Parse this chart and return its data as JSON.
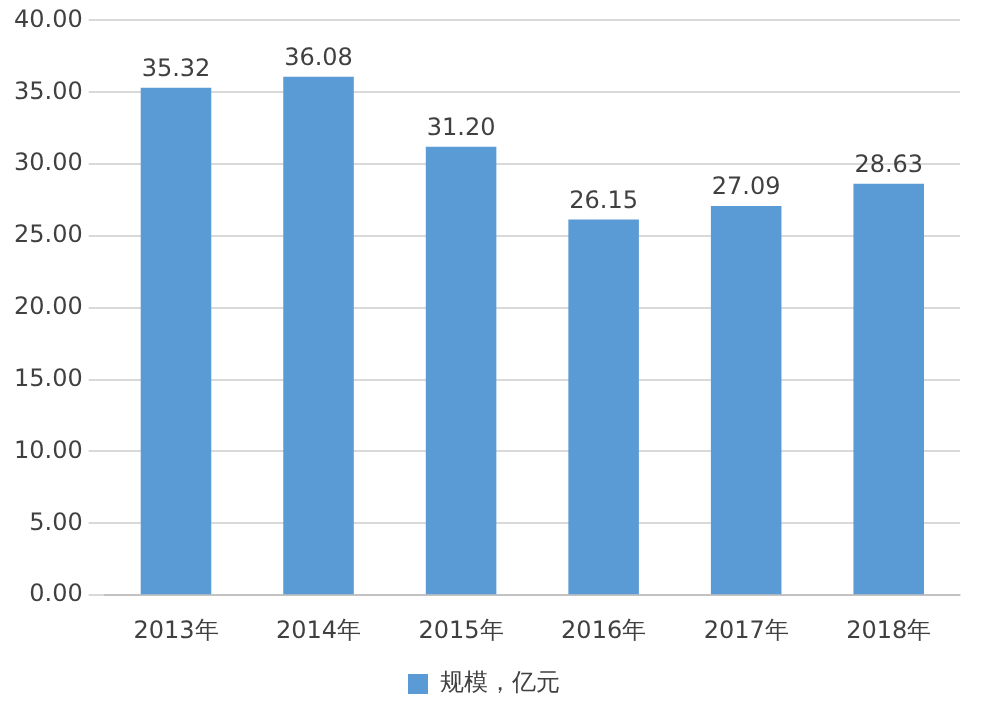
{
  "chart_data": {
    "type": "bar",
    "categories": [
      "2013年",
      "2014年",
      "2015年",
      "2016年",
      "2017年",
      "2018年"
    ],
    "series": [
      {
        "name": "规模，亿元",
        "color": "#5b9bd5",
        "values": [
          35.32,
          36.08,
          31.2,
          26.15,
          27.09,
          28.63
        ]
      }
    ],
    "value_labels": [
      "35.32",
      "36.08",
      "31.20",
      "26.15",
      "27.09",
      "28.63"
    ],
    "ylim": [
      0,
      40
    ],
    "yticks": [
      {
        "value": 0,
        "label": "0.00"
      },
      {
        "value": 5,
        "label": "5.00"
      },
      {
        "value": 10,
        "label": "10.00"
      },
      {
        "value": 15,
        "label": "15.00"
      },
      {
        "value": 20,
        "label": "20.00"
      },
      {
        "value": 25,
        "label": "25.00"
      },
      {
        "value": 30,
        "label": "30.00"
      },
      {
        "value": 35,
        "label": "35.00"
      },
      {
        "value": 40,
        "label": "40.00"
      }
    ],
    "grid": "y",
    "legend": "bottom"
  }
}
